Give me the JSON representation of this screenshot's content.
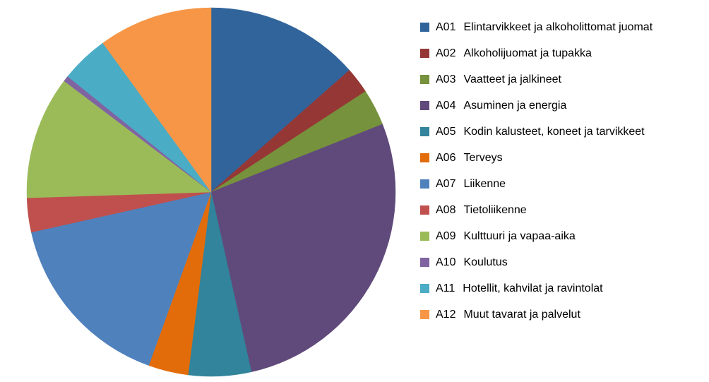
{
  "chart_data": {
    "type": "pie",
    "title": "",
    "legend_position": "right",
    "direction": "clockwise",
    "start_angle_deg": 0,
    "values_unit": "approx share of whole, %",
    "items": [
      {
        "code": "A01",
        "label": "Elintarvikkeet ja alkoholittomat juomat",
        "value": 13.5,
        "color": "#31649B"
      },
      {
        "code": "A02",
        "label": "Alkoholijuomat ja tupakka",
        "value": 2.3,
        "color": "#953735"
      },
      {
        "code": "A03",
        "label": "Vaatteet ja jalkineet",
        "value": 3.2,
        "color": "#76923C"
      },
      {
        "code": "A04",
        "label": "Asuminen ja energia",
        "value": 27.5,
        "color": "#604A7B"
      },
      {
        "code": "A05",
        "label": "Kodin kalusteet, koneet ja tarvikkeet",
        "value": 5.5,
        "color": "#31849B"
      },
      {
        "code": "A06",
        "label": "Terveys",
        "value": 3.5,
        "color": "#E36C0A"
      },
      {
        "code": "A07",
        "label": "Liikenne",
        "value": 16.0,
        "color": "#4F81BD"
      },
      {
        "code": "A08",
        "label": "Tietoliikenne",
        "value": 3.0,
        "color": "#C0504D"
      },
      {
        "code": "A09",
        "label": "Kulttuuri ja vapaa-aika",
        "value": 10.8,
        "color": "#9BBB59"
      },
      {
        "code": "A10",
        "label": "Koulutus",
        "value": 0.5,
        "color": "#8064A2"
      },
      {
        "code": "A11",
        "label": "Hotellit, kahvilat ja ravintolat",
        "value": 4.2,
        "color": "#4BACC6"
      },
      {
        "code": "A12",
        "label": "Muut tavarat ja palvelut",
        "value": 10.0,
        "color": "#F79646"
      }
    ]
  }
}
